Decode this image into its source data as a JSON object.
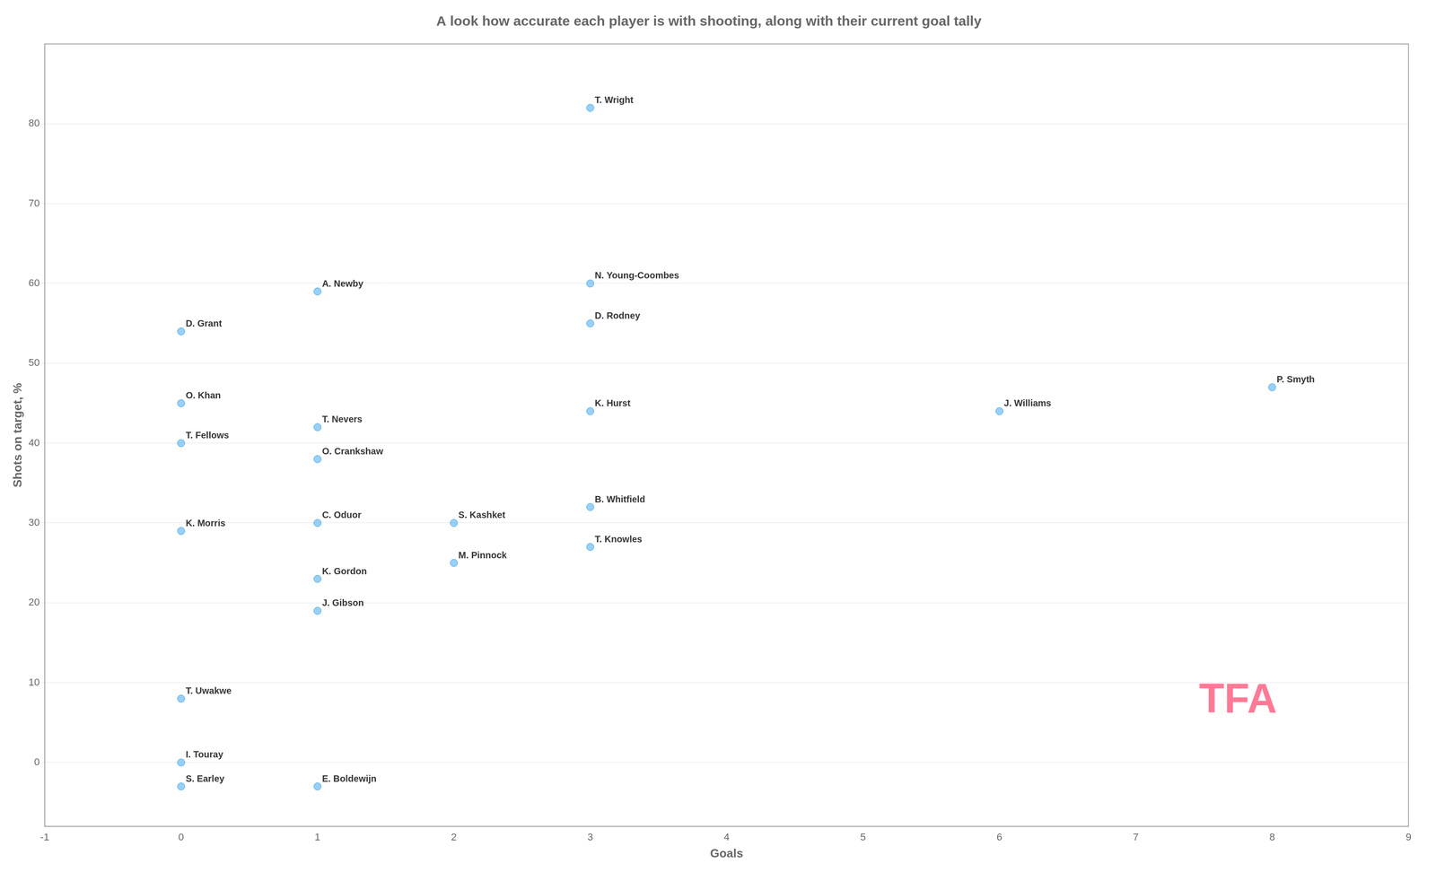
{
  "chart_data": {
    "type": "scatter",
    "title": "A look how accurate each player is with shooting, along with their current goal tally",
    "x_label": "Goals",
    "y_label": "Shots on target, %",
    "x": [
      3,
      3,
      3,
      1,
      0,
      0,
      0,
      1,
      1,
      3,
      3,
      3,
      2,
      2,
      0,
      1,
      1,
      1,
      6,
      8,
      0,
      0,
      0,
      1
    ],
    "values": [
      82,
      60,
      55,
      59,
      54,
      45,
      40,
      38,
      42,
      44,
      32,
      27,
      30,
      25,
      29,
      30,
      23,
      19,
      44,
      47,
      8,
      0,
      -3,
      -3
    ],
    "point_labels": [
      "T. Wright",
      "N. Young-Coombes",
      "D. Rodney",
      "A. Newby",
      "D. Grant",
      "O. Khan",
      "T. Fellows",
      "O. Crankshaw",
      "T. Nevers",
      "K. Hurst",
      "B. Whitfield",
      "T. Knowles",
      "S. Kashket",
      "M. Pinnock",
      "K. Morris",
      "C. Oduor",
      "K. Gordon",
      "J. Gibson",
      "J. Williams",
      "P. Smyth",
      "T. Uwakwe",
      "I. Touray",
      "S. Earley",
      "E. Boldewijn"
    ],
    "annotations": [
      "TFA"
    ],
    "xlim": [
      -1,
      9
    ],
    "ylim": [
      -8,
      90
    ],
    "xticks": [
      -1,
      0,
      1,
      2,
      3,
      4,
      5,
      6,
      7,
      8,
      9
    ],
    "yticks": [
      0,
      10,
      20,
      30,
      40,
      50,
      60,
      70,
      80
    ],
    "grid": "y"
  }
}
